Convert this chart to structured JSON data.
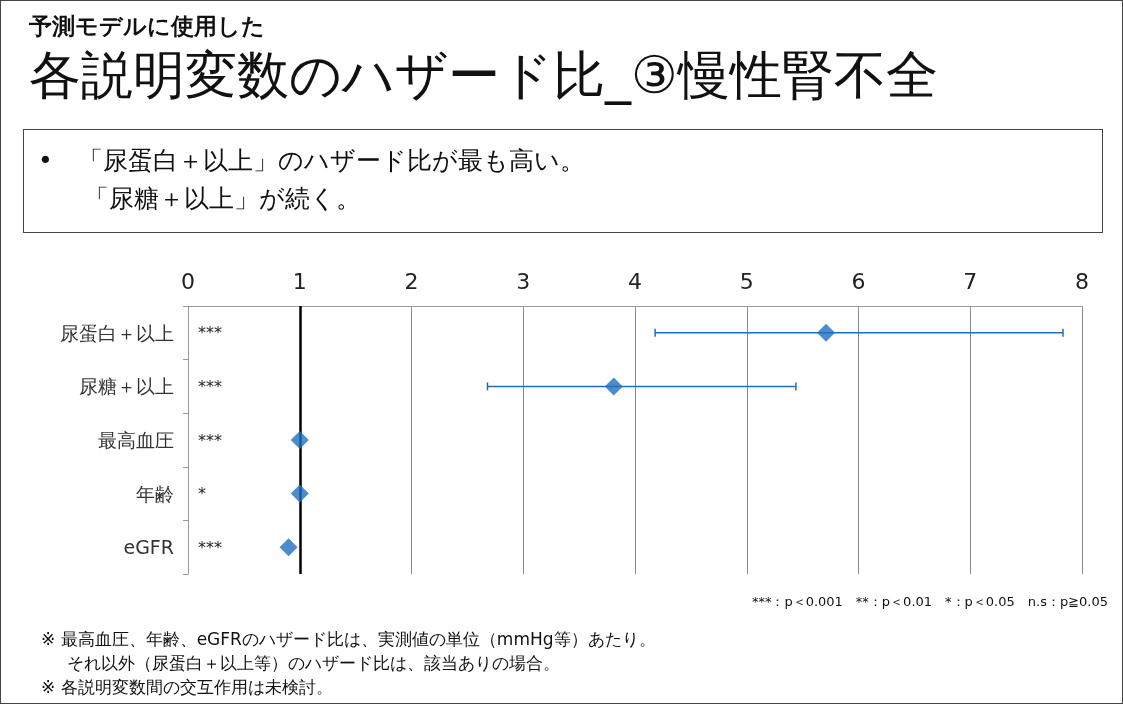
{
  "chart_data": {
    "type": "scatter",
    "orientation": "horizontal",
    "subtitle": "予測モデルに使用した",
    "title": "各説明変数のハザード比_③慢性腎不全",
    "categories": [
      "尿蛋白＋以上",
      "尿糖＋以上",
      "最高血圧",
      "年齢",
      "eGFR"
    ],
    "values": [
      5.71,
      3.81,
      1.0,
      1.0,
      0.9
    ],
    "errors": [
      [
        4.18,
        7.83
      ],
      [
        2.68,
        5.44
      ],
      null,
      null,
      null
    ],
    "color": "#1f6fbf",
    "marker": "diamond",
    "xlim": [
      0,
      8
    ],
    "xticks": [
      0,
      1,
      2,
      3,
      4,
      5,
      6,
      7,
      8
    ],
    "grid": "x",
    "ref_lines": [
      {
        "axis": "x",
        "value": 1,
        "color": "#000000"
      }
    ],
    "annotations": [
      "***",
      "***",
      "***",
      "*",
      "***",
      "•　「尿蛋白＋以上」のハザード比が最も高い。",
      "「尿糖＋以上」が続く。",
      "***：p＜0.001　**：p＜0.01　*：p＜0.05　n.s：p≧0.05",
      "※ 最高血圧、年齢、eGFRのハザード比は、実測値の単位（mmHg等）あたり。",
      "それ以外（尿蛋白＋以上等）のハザード比は、該当ありの場合。",
      "※ 各説明変数間の交互作用は未検討。"
    ]
  }
}
